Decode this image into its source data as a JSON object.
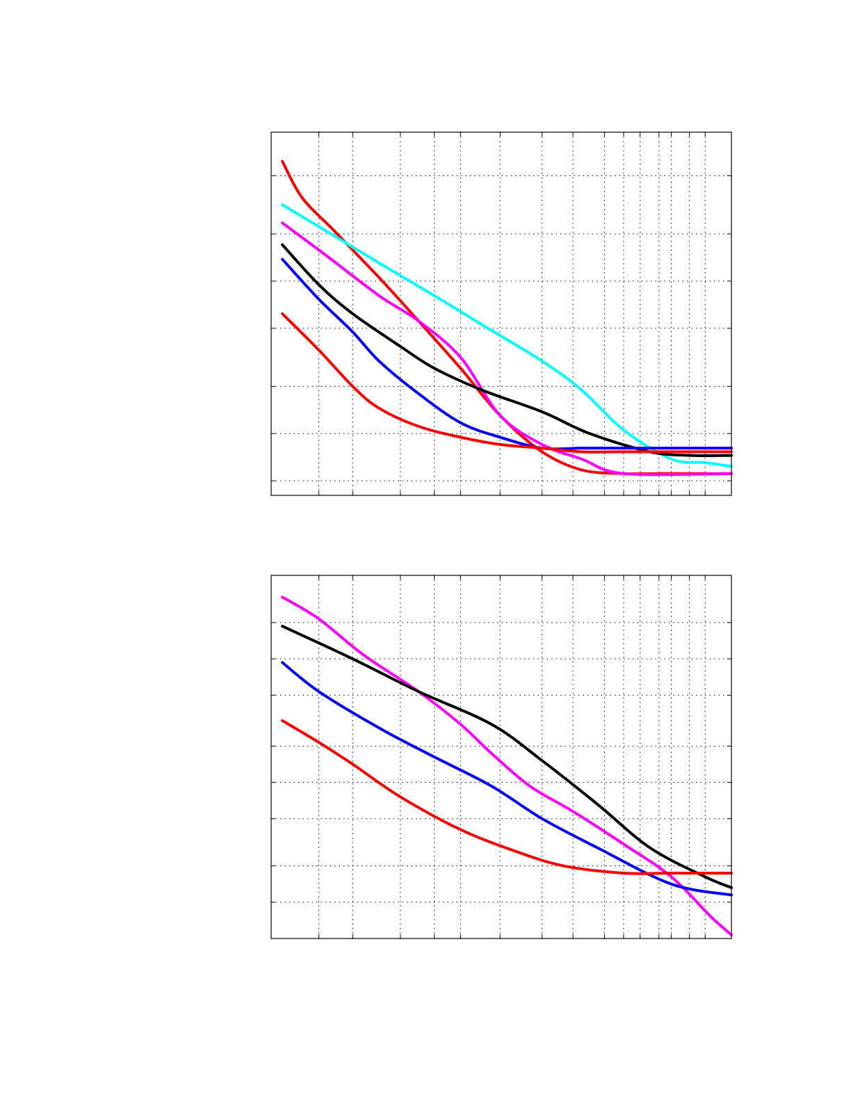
{
  "chart_data": [
    {
      "type": "line",
      "title": "",
      "xlabel": "",
      "ylabel": "",
      "x_scale": "log",
      "xlim": [
        1,
        50
      ],
      "ylim": [
        0,
        1
      ],
      "grid": true,
      "legend": "none",
      "x_grid": [
        1.5,
        2,
        3,
        4,
        5,
        7,
        10,
        13,
        17,
        20,
        23,
        27,
        30,
        35,
        40
      ],
      "y_grid": [
        0.04,
        0.17,
        0.3,
        0.46,
        0.59,
        0.72,
        0.88
      ],
      "series": [
        {
          "color": "#ff0000",
          "x": [
            1.1,
            1.3,
            1.7,
            2.5,
            3.5,
            5,
            7,
            10,
            14,
            20,
            28,
            50
          ],
          "y": [
            0.92,
            0.82,
            0.73,
            0.6,
            0.48,
            0.35,
            0.22,
            0.12,
            0.07,
            0.06,
            0.06,
            0.06
          ]
        },
        {
          "color": "#00ffff",
          "x": [
            1.1,
            1.5,
            2.5,
            4,
            6,
            10,
            14,
            20,
            30,
            40,
            50
          ],
          "y": [
            0.8,
            0.74,
            0.64,
            0.55,
            0.47,
            0.37,
            0.29,
            0.18,
            0.1,
            0.09,
            0.08
          ]
        },
        {
          "color": "#ff00ff",
          "x": [
            1.1,
            1.6,
            2.5,
            3.5,
            5,
            7,
            10,
            14,
            20,
            50
          ],
          "y": [
            0.75,
            0.66,
            0.55,
            0.48,
            0.38,
            0.22,
            0.14,
            0.1,
            0.06,
            0.06
          ]
        },
        {
          "color": "#000000",
          "x": [
            1.1,
            1.5,
            2,
            3,
            4,
            6,
            10,
            15,
            25,
            35,
            50
          ],
          "y": [
            0.69,
            0.58,
            0.5,
            0.41,
            0.35,
            0.29,
            0.23,
            0.17,
            0.12,
            0.11,
            0.11
          ]
        },
        {
          "color": "#0000ff",
          "x": [
            1.1,
            1.5,
            2,
            2.5,
            3.5,
            5,
            7,
            10,
            14,
            20,
            50
          ],
          "y": [
            0.65,
            0.54,
            0.45,
            0.37,
            0.28,
            0.2,
            0.16,
            0.13,
            0.13,
            0.13,
            0.13
          ]
        },
        {
          "color": "#ff0000",
          "x": [
            1.1,
            1.5,
            2,
            2.5,
            3.5,
            5,
            7,
            10,
            14,
            20,
            50
          ],
          "y": [
            0.5,
            0.4,
            0.3,
            0.24,
            0.19,
            0.16,
            0.14,
            0.13,
            0.12,
            0.12,
            0.12
          ]
        }
      ]
    },
    {
      "type": "line",
      "title": "",
      "xlabel": "",
      "ylabel": "",
      "x_scale": "log",
      "xlim": [
        1,
        50
      ],
      "ylim": [
        0,
        1
      ],
      "grid": true,
      "legend": "none",
      "x_grid": [
        1.5,
        2,
        3,
        4,
        5,
        7,
        10,
        13,
        17,
        20,
        23,
        27,
        30,
        35,
        40
      ],
      "y_grid": [
        0.1,
        0.2,
        0.33,
        0.43,
        0.53,
        0.67,
        0.77,
        0.87
      ],
      "series": [
        {
          "color": "#ff00ff",
          "x": [
            1.1,
            1.5,
            2.2,
            3.5,
            5,
            6.5,
            9,
            13,
            20,
            30,
            42,
            50
          ],
          "y": [
            0.94,
            0.88,
            0.78,
            0.68,
            0.59,
            0.51,
            0.42,
            0.35,
            0.26,
            0.17,
            0.06,
            0.01
          ]
        },
        {
          "color": "#000000",
          "x": [
            1.1,
            2,
            3.5,
            6.5,
            10,
            16,
            25,
            40,
            50
          ],
          "y": [
            0.86,
            0.77,
            0.68,
            0.59,
            0.49,
            0.37,
            0.25,
            0.17,
            0.14
          ]
        },
        {
          "color": "#0000ff",
          "x": [
            1.1,
            1.5,
            2.5,
            4,
            6.5,
            10,
            16,
            30,
            50
          ],
          "y": [
            0.76,
            0.68,
            0.58,
            0.5,
            0.42,
            0.33,
            0.25,
            0.15,
            0.12
          ]
        },
        {
          "color": "#ff0000",
          "x": [
            1.1,
            1.5,
            2,
            3,
            5,
            8,
            12,
            20,
            30,
            50
          ],
          "y": [
            0.6,
            0.54,
            0.48,
            0.39,
            0.3,
            0.24,
            0.2,
            0.18,
            0.18,
            0.18
          ]
        }
      ]
    }
  ]
}
